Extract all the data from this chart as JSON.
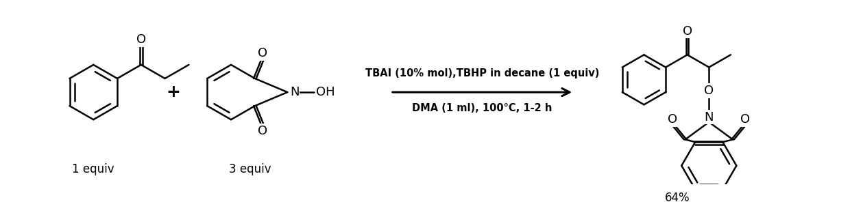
{
  "background": "#ffffff",
  "line_color": "#000000",
  "line_width": 1.8,
  "text_color": "#000000",
  "reagent_line1": "TBAI (10% mol),TBHP in decane (1 equiv)",
  "reagent_line2": "DMA (1 ml), 100°C, 1-2 h",
  "label1": "1 equiv",
  "label2": "3 equiv",
  "label3": "64%",
  "plus_sign": "+",
  "font_size_reagent": 10.5,
  "font_size_label": 12,
  "font_size_atom": 12
}
